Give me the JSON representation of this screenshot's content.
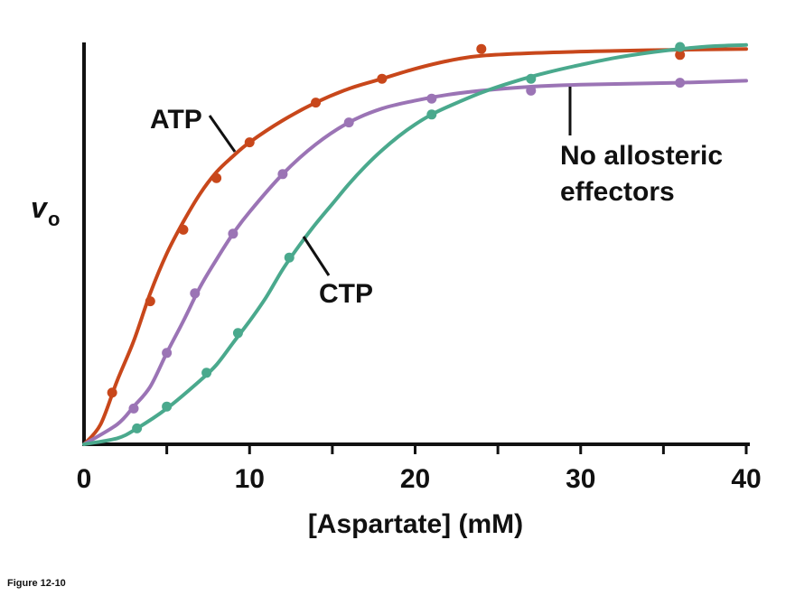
{
  "chart_data": {
    "type": "line",
    "title": "",
    "xlabel": "[Aspartate] (mM)",
    "ylabel": {
      "main": "v",
      "sub": "o"
    },
    "xlim": [
      0,
      40
    ],
    "ylim": [
      0,
      100
    ],
    "x_ticks": [
      0,
      10,
      20,
      30,
      40
    ],
    "grid": false,
    "series": [
      {
        "name": "ATP",
        "color": "#c8471b",
        "points": [
          [
            1.7,
            13
          ],
          [
            4,
            36
          ],
          [
            6,
            54
          ],
          [
            8,
            67
          ],
          [
            10,
            76
          ],
          [
            14,
            86
          ],
          [
            18,
            92
          ],
          [
            24,
            99.5
          ],
          [
            36,
            98
          ]
        ],
        "curve": [
          [
            0,
            0
          ],
          [
            1,
            5
          ],
          [
            2,
            16
          ],
          [
            3,
            26
          ],
          [
            4,
            38
          ],
          [
            5,
            48
          ],
          [
            6,
            56
          ],
          [
            7,
            63
          ],
          [
            8,
            68.5
          ],
          [
            9,
            72.5
          ],
          [
            10,
            76
          ],
          [
            12,
            81.5
          ],
          [
            14,
            86
          ],
          [
            16,
            89.5
          ],
          [
            18,
            92
          ],
          [
            20,
            94.5
          ],
          [
            22,
            96.5
          ],
          [
            24,
            97.8
          ],
          [
            28,
            98.6
          ],
          [
            32,
            99
          ],
          [
            36,
            99.3
          ],
          [
            40,
            99.5
          ]
        ]
      },
      {
        "name": "No allosteric effectors",
        "color": "#9b74b5",
        "points": [
          [
            3,
            9
          ],
          [
            5,
            23
          ],
          [
            6.7,
            38
          ],
          [
            9,
            53
          ],
          [
            12,
            68
          ],
          [
            16,
            81
          ],
          [
            21,
            87
          ],
          [
            27,
            89
          ],
          [
            36,
            91
          ]
        ],
        "curve": [
          [
            0,
            0
          ],
          [
            2,
            5
          ],
          [
            3,
            9.5
          ],
          [
            4,
            14.5
          ],
          [
            5,
            23
          ],
          [
            6,
            31
          ],
          [
            7,
            39.5
          ],
          [
            8,
            46.5
          ],
          [
            9,
            53
          ],
          [
            10,
            58.5
          ],
          [
            12,
            68
          ],
          [
            14,
            75.5
          ],
          [
            16,
            81
          ],
          [
            18,
            84.5
          ],
          [
            20,
            86.5
          ],
          [
            22,
            88
          ],
          [
            24,
            89
          ],
          [
            27,
            90
          ],
          [
            30,
            90.5
          ],
          [
            36,
            91
          ],
          [
            40,
            91.5
          ]
        ]
      },
      {
        "name": "CTP",
        "color": "#4aa98d",
        "points": [
          [
            3.2,
            4
          ],
          [
            5,
            9.5
          ],
          [
            7.4,
            18
          ],
          [
            9.3,
            28
          ],
          [
            12.4,
            47
          ],
          [
            21,
            83
          ],
          [
            27,
            92
          ],
          [
            36,
            100
          ]
        ],
        "curve": [
          [
            0,
            0
          ],
          [
            2,
            1.5
          ],
          [
            3.2,
            4
          ],
          [
            5,
            9
          ],
          [
            7,
            16
          ],
          [
            8,
            20
          ],
          [
            9,
            25.5
          ],
          [
            10,
            31
          ],
          [
            11,
            37
          ],
          [
            12,
            44
          ],
          [
            13,
            50
          ],
          [
            14,
            55.5
          ],
          [
            15,
            60.5
          ],
          [
            16,
            65.5
          ],
          [
            17,
            70
          ],
          [
            18,
            74
          ],
          [
            19,
            77.5
          ],
          [
            20,
            80.5
          ],
          [
            21,
            83
          ],
          [
            22,
            85
          ],
          [
            24,
            88.5
          ],
          [
            26,
            91.3
          ],
          [
            28,
            93.6
          ],
          [
            30,
            95.5
          ],
          [
            32,
            97.2
          ],
          [
            34,
            98.5
          ],
          [
            36,
            99.5
          ],
          [
            38,
            100.2
          ],
          [
            40,
            100.5
          ]
        ]
      }
    ],
    "annotations": [
      {
        "series": "ATP",
        "text": "ATP"
      },
      {
        "series": "No allosteric effectors",
        "text": "No allosteric effectors",
        "lines": [
          "No allosteric",
          "effectors"
        ]
      },
      {
        "series": "CTP",
        "text": "CTP"
      }
    ]
  },
  "caption": "Figure 12-10"
}
